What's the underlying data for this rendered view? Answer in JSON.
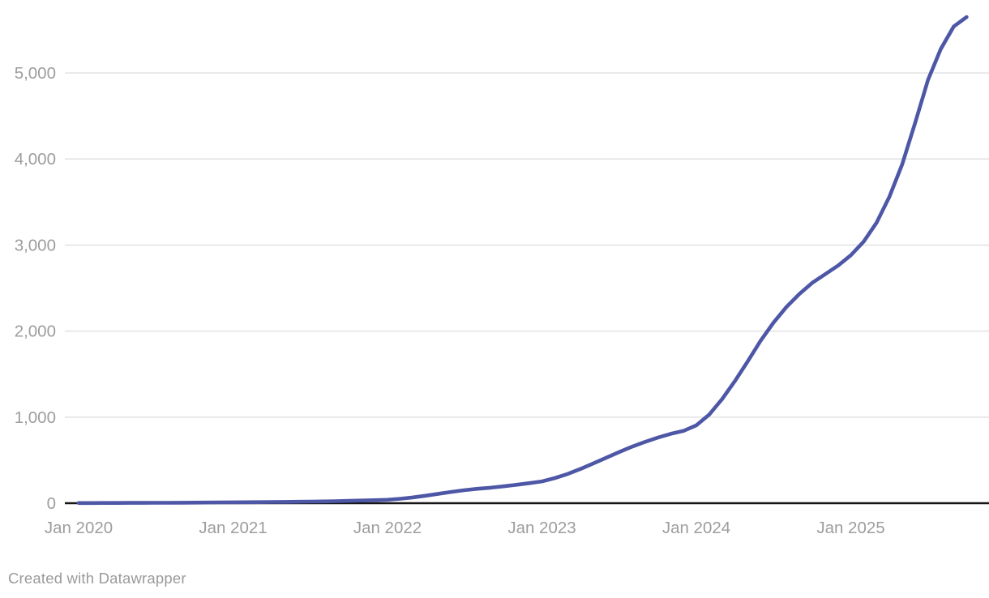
{
  "attribution": "Created with Datawrapper",
  "colors": {
    "line": "#4d57a6",
    "grid": "#e4e4e4",
    "axis": "#161616",
    "tick_label": "#9d9d9d",
    "attribution_text": "#9a9a9a",
    "background": "#ffffff"
  },
  "chart_data": {
    "type": "line",
    "title": "",
    "subtitle": "",
    "series_name": "",
    "legend": "none",
    "grid": "horizontal",
    "x_interval": "monthly",
    "x_start": "2020-01",
    "x_end": "2025-10",
    "xlabel": "",
    "ylabel": "",
    "ylim": [
      0,
      5700
    ],
    "yticks": [
      0,
      1000,
      2000,
      3000,
      4000,
      5000
    ],
    "y_tick_labels": [
      "0",
      "1,000",
      "2,000",
      "3,000",
      "4,000",
      "5,000"
    ],
    "x_tick_labels": [
      "Jan 2020",
      "Jan 2021",
      "Jan 2022",
      "Jan 2023",
      "Jan 2024",
      "Jan 2025"
    ],
    "x": [
      "2020-01",
      "2020-02",
      "2020-03",
      "2020-04",
      "2020-05",
      "2020-06",
      "2020-07",
      "2020-08",
      "2020-09",
      "2020-10",
      "2020-11",
      "2020-12",
      "2021-01",
      "2021-02",
      "2021-03",
      "2021-04",
      "2021-05",
      "2021-06",
      "2021-07",
      "2021-08",
      "2021-09",
      "2021-10",
      "2021-11",
      "2021-12",
      "2022-01",
      "2022-02",
      "2022-03",
      "2022-04",
      "2022-05",
      "2022-06",
      "2022-07",
      "2022-08",
      "2022-09",
      "2022-10",
      "2022-11",
      "2022-12",
      "2023-01",
      "2023-02",
      "2023-03",
      "2023-04",
      "2023-05",
      "2023-06",
      "2023-07",
      "2023-08",
      "2023-09",
      "2023-10",
      "2023-11",
      "2023-12",
      "2024-01",
      "2024-02",
      "2024-03",
      "2024-04",
      "2024-05",
      "2024-06",
      "2024-07",
      "2024-08",
      "2024-09",
      "2024-10",
      "2024-11",
      "2024-12",
      "2025-01",
      "2025-02",
      "2025-03",
      "2025-04",
      "2025-05",
      "2025-06",
      "2025-07",
      "2025-08",
      "2025-09",
      "2025-10"
    ],
    "values": [
      2,
      2,
      3,
      3,
      4,
      4,
      5,
      5,
      6,
      7,
      8,
      9,
      10,
      11,
      12,
      14,
      15,
      17,
      19,
      21,
      24,
      27,
      31,
      35,
      40,
      52,
      68,
      88,
      110,
      132,
      152,
      168,
      180,
      196,
      214,
      233,
      253,
      292,
      340,
      398,
      462,
      528,
      594,
      656,
      712,
      762,
      806,
      840,
      905,
      1030,
      1210,
      1420,
      1650,
      1890,
      2100,
      2280,
      2430,
      2560,
      2660,
      2760,
      2880,
      3040,
      3260,
      3560,
      3940,
      4420,
      4920,
      5280,
      5540,
      5650
    ]
  }
}
